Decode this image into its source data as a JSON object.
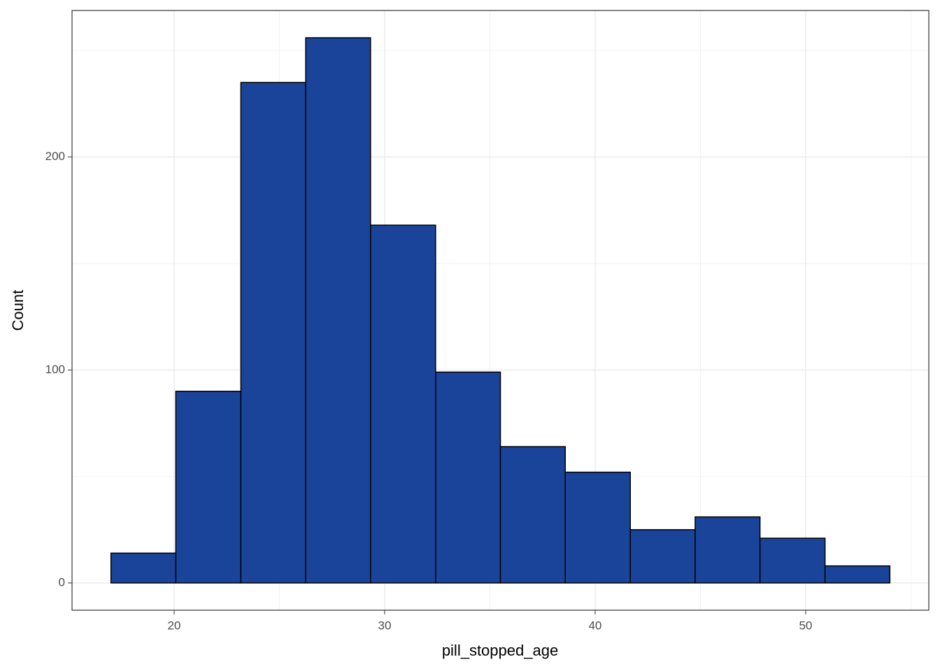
{
  "chart_data": {
    "type": "histogram",
    "x_label": "pill_stopped_age",
    "y_label": "Count",
    "bins": [
      17,
      20.08,
      23.17,
      26.25,
      29.33,
      32.42,
      35.5,
      38.58,
      41.67,
      44.75,
      47.83,
      50.92,
      54
    ],
    "values": [
      14,
      90,
      235,
      256,
      168,
      99,
      64,
      52,
      25,
      31,
      21,
      8
    ],
    "color": "#1a449a",
    "edge_color": "#000000",
    "xlim": [
      15.15,
      55.85
    ],
    "ylim": [
      -12.8,
      268.8
    ],
    "xticks": [
      20,
      30,
      40,
      50
    ],
    "yticks": [
      0,
      100,
      200
    ],
    "minor_xticks": [
      25,
      35,
      45,
      55
    ],
    "minor_yticks": [
      50,
      150,
      250
    ],
    "grid": true
  }
}
